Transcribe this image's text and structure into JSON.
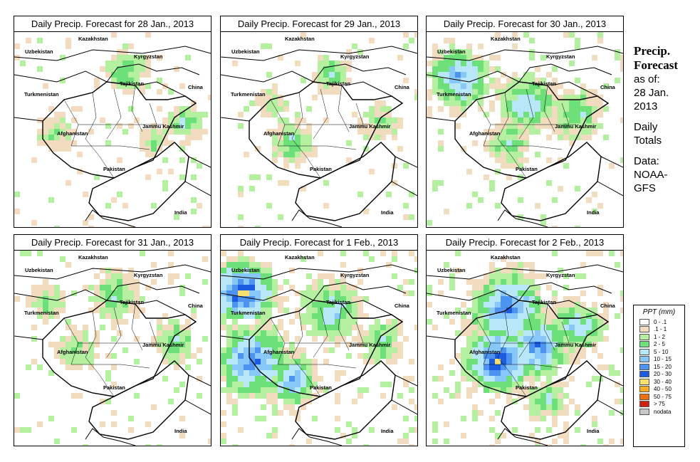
{
  "panels": [
    {
      "title": "Daily Precip. Forecast for  28 Jan., 2013",
      "intensity": 0.2
    },
    {
      "title": "Daily Precip. Forecast for  29 Jan., 2013",
      "intensity": 0.35
    },
    {
      "title": "Daily Precip. Forecast for  30 Jan., 2013",
      "intensity": 0.6
    },
    {
      "title": "Daily Precip. Forecast for  31 Jan., 2013",
      "intensity": 0.3
    },
    {
      "title": "Daily Precip. Forecast for  1 Feb., 2013",
      "intensity": 0.85
    },
    {
      "title": "Daily Precip. Forecast for  2 Feb., 2013",
      "intensity": 0.95
    }
  ],
  "map_labels": {
    "kazakhstan": "Kazakhstan",
    "uzbekistan": "Uzbekistan",
    "kyrgyzstan": "Kyrgyzstan",
    "tajikistan": "Tajikistan",
    "china": "China",
    "turkmenistan": "Turkmenistan",
    "jammu_kashmir": "Jammu Kashmir",
    "afghanistan": "Afghanistan",
    "pakistan": "Pakistan",
    "india": "India"
  },
  "side": {
    "title_line1": "Precip.",
    "title_line2": "Forecast",
    "asof": "as of:",
    "date1": "28 Jan.",
    "date2": "2013",
    "daily": "Daily",
    "totals": "Totals",
    "data": "Data:",
    "source1": "NOAA-",
    "source2": "GFS"
  },
  "legend": {
    "title": "PPT (mm)",
    "items": [
      {
        "label": "0 - .1",
        "color": "#ffffff"
      },
      {
        "label": ".1 - 1",
        "color": "#f2dcc0"
      },
      {
        "label": "1 - 2",
        "color": "#b4f0a0"
      },
      {
        "label": "2 - 5",
        "color": "#6ee07a"
      },
      {
        "label": "5 - 10",
        "color": "#b8e8f8"
      },
      {
        "label": "10 - 15",
        "color": "#88c8f8"
      },
      {
        "label": "15 - 20",
        "color": "#4c94f0"
      },
      {
        "label": "20 - 30",
        "color": "#1c5ce0"
      },
      {
        "label": "30 - 40",
        "color": "#f8e06c"
      },
      {
        "label": "40 - 50",
        "color": "#f8b020"
      },
      {
        "label": "50 - 75",
        "color": "#f07010"
      },
      {
        "label": "> 75",
        "color": "#d02010"
      },
      {
        "label": "nodata",
        "color": "#c8c8c8"
      }
    ]
  }
}
